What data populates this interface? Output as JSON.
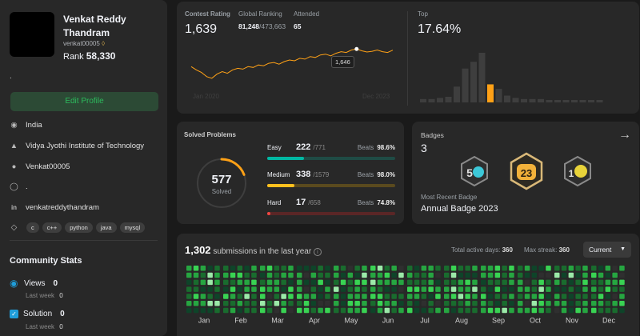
{
  "profile": {
    "name": "Venkat Reddy Thandram",
    "username": "venkat00005",
    "rank_label": "Rank",
    "rank_value": "58,330",
    "summary": ".",
    "edit_button": "Edit Profile",
    "location": "India",
    "school": "Vidya Jyothi Institute of Technology",
    "github": "Venkat00005",
    "website": ".",
    "linkedin": "venkatreddythandram",
    "skills": [
      "c",
      "c++",
      "python",
      "java",
      "mysql"
    ]
  },
  "community": {
    "title": "Community Stats",
    "views_label": "Views",
    "views_value": "0",
    "views_sub": "Last week",
    "views_sub_value": "0",
    "solution_label": "Solution",
    "solution_value": "0",
    "solution_sub": "Last week",
    "solution_sub_value": "0"
  },
  "contest": {
    "rating_label": "Contest Rating",
    "rating_value": "1,639",
    "global_label": "Global Ranking",
    "global_value": "81,248",
    "global_total": "/473,663",
    "attended_label": "Attended",
    "attended_value": "65",
    "top_label": "Top",
    "top_value": "17.64%",
    "tooltip": "1,646",
    "x_start": "Jan 2020",
    "x_end": "Dec 2023"
  },
  "chart_data": [
    {
      "type": "line",
      "title": "Contest Rating",
      "x_start": "Jan 2020",
      "x_end": "Dec 2023",
      "values": [
        1540,
        1520,
        1505,
        1480,
        1470,
        1495,
        1510,
        1500,
        1520,
        1530,
        1525,
        1540,
        1535,
        1550,
        1545,
        1560,
        1565,
        1555,
        1570,
        1580,
        1575,
        1590,
        1585,
        1600,
        1595,
        1610,
        1615,
        1605,
        1620,
        1630,
        1625,
        1640,
        1646,
        1635,
        1628,
        1632,
        1640,
        1630,
        1625,
        1639
      ],
      "ylim": [
        1450,
        1700
      ],
      "highlight": {
        "index": 32,
        "value": 1646
      },
      "line_color": "#ffa116"
    },
    {
      "type": "bar",
      "title": "Top",
      "values": [
        3,
        3,
        4,
        5,
        14,
        30,
        36,
        44,
        16,
        12,
        6,
        4,
        3,
        3,
        3,
        2,
        2,
        2,
        2,
        2,
        1,
        1
      ],
      "highlight_index": 8,
      "bar_color": "#3e3e3e",
      "highlight_color": "#ffa116"
    },
    {
      "type": "heatmap",
      "title": "submissions in the last year",
      "months": [
        "Jan",
        "Feb",
        "Mar",
        "Apr",
        "May",
        "Jun",
        "Jul",
        "Aug",
        "Sep",
        "Oct",
        "Nov",
        "Dec"
      ],
      "total": "1,302",
      "active_days": "360",
      "max_streak": "360"
    }
  ],
  "solved": {
    "title": "Solved Problems",
    "total": "577",
    "total_label": "Solved",
    "easy_label": "Easy",
    "easy_value": "222",
    "easy_total": "/771",
    "easy_beats": "98.6%",
    "medium_label": "Medium",
    "medium_value": "338",
    "medium_total": "/1579",
    "medium_beats": "98.0%",
    "hard_label": "Hard",
    "hard_value": "17",
    "hard_total": "/658",
    "hard_beats": "74.8%",
    "beats_label": "Beats",
    "easy_color": "#00b8a3",
    "medium_color": "#ffc01e",
    "hard_color": "#ef4743"
  },
  "badges": {
    "title": "Badges",
    "count": "3",
    "recent_label": "Most Recent Badge",
    "recent_value": "Annual Badge 2023",
    "items": [
      "50-days-badge-icon",
      "annual-2023-badge-icon",
      "100-days-badge-icon"
    ]
  },
  "submissions": {
    "count": "1,302",
    "label": "submissions in the last year",
    "active_label": "Total active days:",
    "active_value": "360",
    "streak_label": "Max streak:",
    "streak_value": "360",
    "select_value": "Current"
  }
}
